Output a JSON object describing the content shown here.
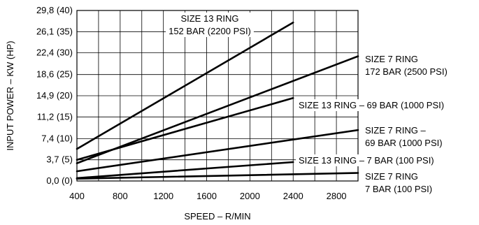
{
  "chart_data": {
    "type": "line",
    "title": "",
    "xlabel": "SPEED – R/MIN",
    "ylabel": "INPUT POWER – KW (HP)",
    "xlim": [
      400,
      3000
    ],
    "ylim": [
      0,
      29.8
    ],
    "grid": true,
    "x_ticks": [
      {
        "value": 400,
        "label": "400"
      },
      {
        "value": 800,
        "label": "800"
      },
      {
        "value": 1200,
        "label": "1200"
      },
      {
        "value": 1600,
        "label": "1600"
      },
      {
        "value": 2000,
        "label": "2000"
      },
      {
        "value": 2400,
        "label": "2400"
      },
      {
        "value": 2800,
        "label": "2800"
      }
    ],
    "y_ticks": [
      {
        "value": 0.0,
        "label": "0,0 (0)"
      },
      {
        "value": 3.7,
        "label": "3,7 (5)"
      },
      {
        "value": 7.4,
        "label": "7,4 (10)"
      },
      {
        "value": 11.2,
        "label": "11,2 (15)"
      },
      {
        "value": 14.9,
        "label": "14,9 (20)"
      },
      {
        "value": 18.6,
        "label": "18,6 (25)"
      },
      {
        "value": 22.4,
        "label": "22,4 (30)"
      },
      {
        "value": 26.1,
        "label": "26,1 (35)"
      },
      {
        "value": 29.8,
        "label": "29,8 (40)"
      }
    ],
    "series": [
      {
        "x": [
          400,
          2400
        ],
        "y": [
          5.6,
          27.7
        ]
      },
      {
        "x": [
          400,
          3000
        ],
        "y": [
          3.1,
          21.8
        ]
      },
      {
        "x": [
          400,
          2400
        ],
        "y": [
          3.7,
          14.5
        ]
      },
      {
        "x": [
          400,
          3000
        ],
        "y": [
          1.7,
          8.9
        ]
      },
      {
        "x": [
          400,
          2400
        ],
        "y": [
          0.5,
          3.3
        ]
      },
      {
        "x": [
          400,
          3000
        ],
        "y": [
          0.4,
          1.4
        ]
      }
    ],
    "annotations": [
      {
        "lines": [
          "SIZE 13 RING",
          "152 BAR (2200 PSI)"
        ]
      },
      {
        "lines": [
          "SIZE 7 RING",
          "172 BAR (2500 PSI)"
        ]
      },
      {
        "lines": [
          "SIZE 13 RING – 69 BAR (1000 PSI)"
        ]
      },
      {
        "lines": [
          "SIZE 7 RING –",
          "69 BAR (1000 PSI)"
        ]
      },
      {
        "lines": [
          "SIZE 13 RING – 7 BAR (100 PSI)"
        ]
      },
      {
        "lines": [
          "SIZE 7 RING",
          "7 BAR (100 PSI)"
        ]
      }
    ]
  }
}
